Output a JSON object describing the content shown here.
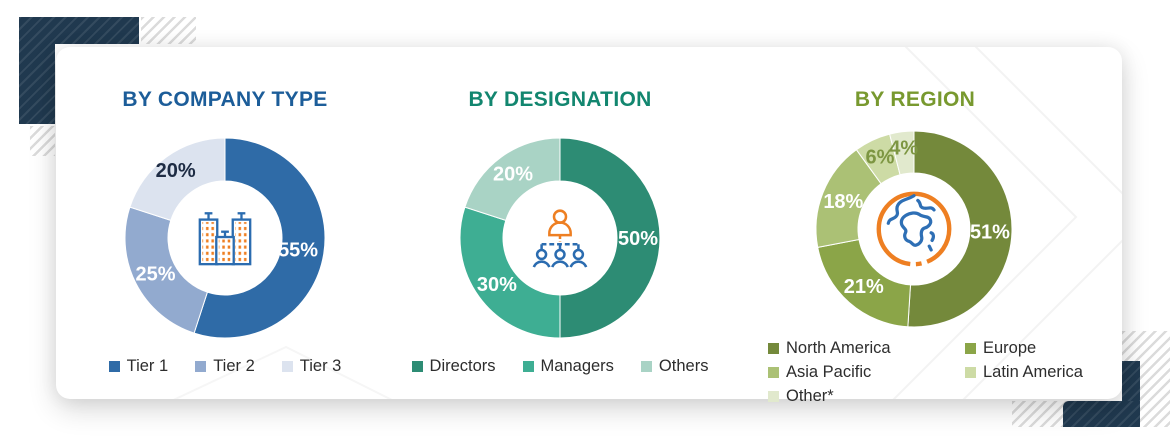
{
  "colors": {
    "navy_accent": "#20394F",
    "hatch_stripe": "#DBDBDB",
    "card_bg": "#FFFFFF",
    "legend_text": "#2D2D2D",
    "icon_orange": "#EE7F22",
    "icon_blue": "#2B6CB0"
  },
  "icons": [
    "buildings-icon",
    "org-chart-icon",
    "globe-icon"
  ],
  "chart_data": [
    {
      "type": "donut",
      "title": "BY COMPANY TYPE",
      "title_color": "#1C5D99",
      "icon": "buildings-icon",
      "legend_position": "bottom-row",
      "slices": [
        {
          "label": "Tier 1",
          "value": 55,
          "pct": "55%",
          "color": "#2F6BA7",
          "pct_color": "#FFFFFF"
        },
        {
          "label": "Tier 2",
          "value": 25,
          "pct": "25%",
          "color": "#92AACF",
          "pct_color": "#FFFFFF"
        },
        {
          "label": "Tier 3",
          "value": 20,
          "pct": "20%",
          "color": "#DCE3EF",
          "pct_color": "#1E2C44"
        }
      ]
    },
    {
      "type": "donut",
      "title": "BY DESIGNATION",
      "title_color": "#12866F",
      "icon": "org-chart-icon",
      "legend_position": "bottom-row",
      "slices": [
        {
          "label": "Directors",
          "value": 50,
          "pct": "50%",
          "color": "#2D8C74",
          "pct_color": "#FFFFFF"
        },
        {
          "label": "Managers",
          "value": 30,
          "pct": "30%",
          "color": "#3EAE93",
          "pct_color": "#FFFFFF"
        },
        {
          "label": "Others",
          "value": 20,
          "pct": "20%",
          "color": "#A9D3C5",
          "pct_color": "#FFFFFF"
        }
      ]
    },
    {
      "type": "donut",
      "title": "BY REGION",
      "title_color": "#78992F",
      "icon": "globe-icon",
      "legend_position": "bottom-grid-2col",
      "slices": [
        {
          "label": "North America",
          "value": 51,
          "pct": "51%",
          "color": "#74893B",
          "pct_color": "#FFFFFF"
        },
        {
          "label": "Europe",
          "value": 21,
          "pct": "21%",
          "color": "#8BA548",
          "pct_color": "#FFFFFF"
        },
        {
          "label": "Asia Pacific",
          "value": 18,
          "pct": "18%",
          "color": "#ABC175",
          "pct_color": "#FFFFFF"
        },
        {
          "label": "Latin America",
          "value": 6,
          "pct": "6%",
          "color": "#CDDBA5",
          "pct_color": "#7D9642"
        },
        {
          "label": "Other*",
          "value": 4,
          "pct": "4%",
          "color": "#E1E9CD",
          "pct_color": "#7D9642"
        }
      ]
    }
  ]
}
